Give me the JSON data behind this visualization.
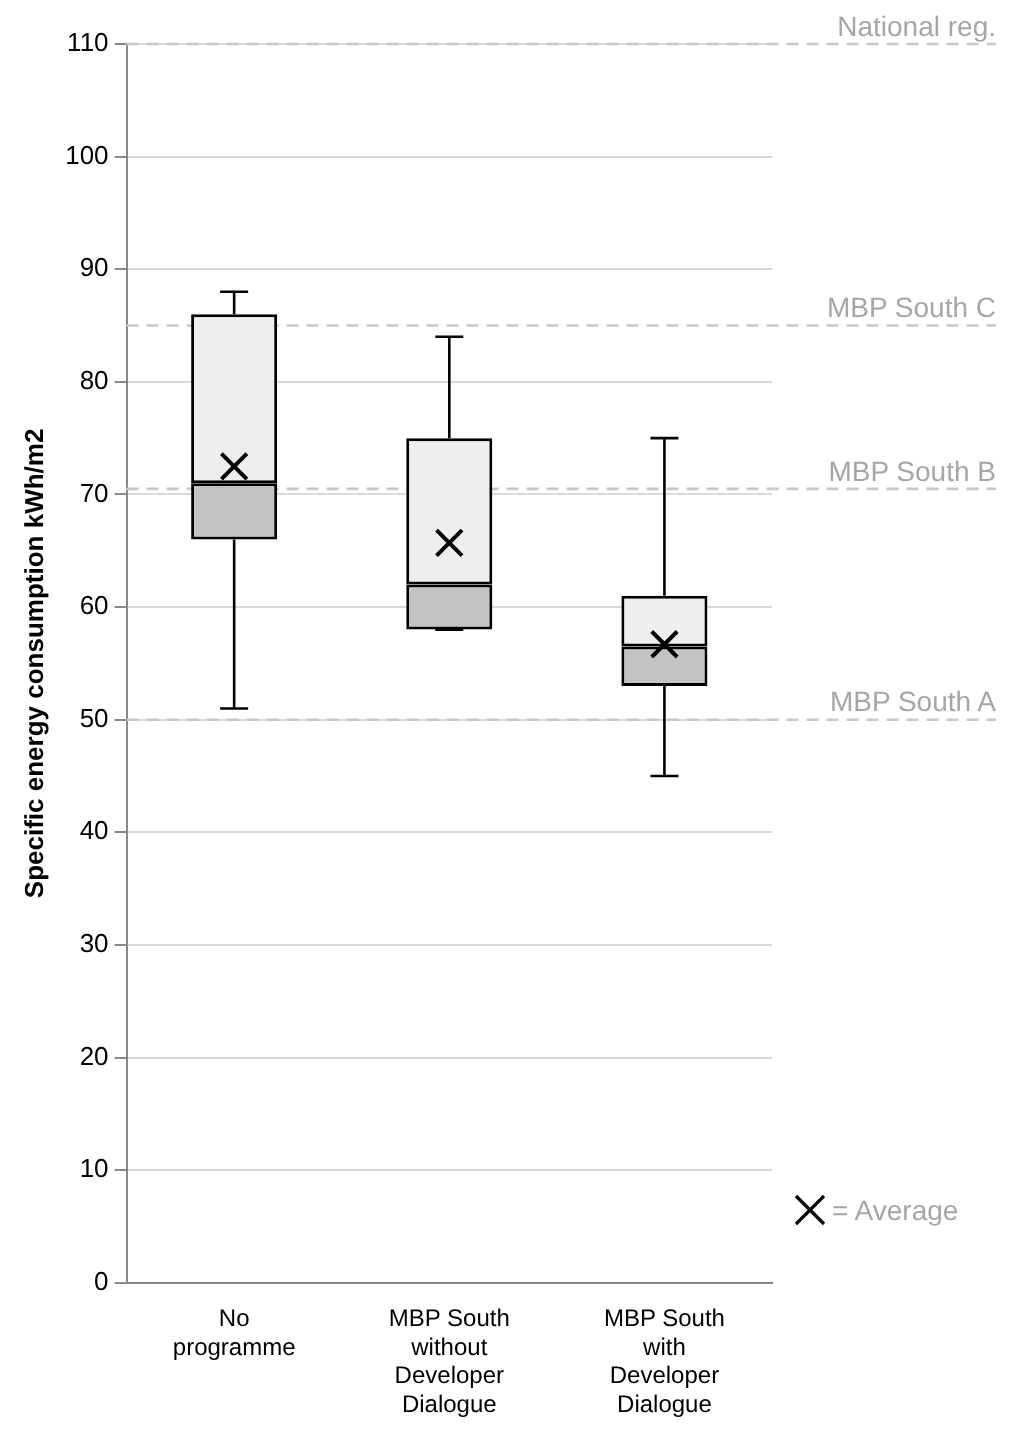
{
  "chart_data": {
    "type": "box",
    "ylabel": "Specific energy consumption kWh/m2",
    "categories": [
      "No programme",
      "MBP South without Developer Dialogue",
      "MBP South with Developer Dialogue"
    ],
    "boxes": [
      {
        "low": 51,
        "q1": 66,
        "median": 71,
        "q3": 86,
        "high": 88,
        "mean": 72.5
      },
      {
        "low": 58,
        "q1": 58,
        "median": 62,
        "q3": 75,
        "high": 84,
        "mean": 65.7
      },
      {
        "low": 45,
        "q1": 53,
        "median": 56.5,
        "q3": 61,
        "high": 75,
        "mean": 56.7
      }
    ],
    "ylim": [
      0,
      110
    ],
    "yticks": [
      0,
      10,
      20,
      30,
      40,
      50,
      60,
      70,
      80,
      90,
      100,
      110
    ],
    "grid": "y",
    "marker": "cross",
    "ref_lines": [
      {
        "axis": "y",
        "value": 110,
        "label": "National reg.",
        "color": "#c8c8c8",
        "line_style": "dashed"
      },
      {
        "axis": "y",
        "value": 85,
        "label": "MBP South C",
        "color": "#c8c8c8",
        "line_style": "dashed"
      },
      {
        "axis": "y",
        "value": 70.5,
        "label": "MBP South B",
        "color": "#c8c8c8",
        "line_style": "dashed"
      },
      {
        "axis": "y",
        "value": 50,
        "label": "MBP South A",
        "color": "#c8c8c8",
        "line_style": "dashed"
      }
    ],
    "annotations": [
      "= Average"
    ]
  }
}
